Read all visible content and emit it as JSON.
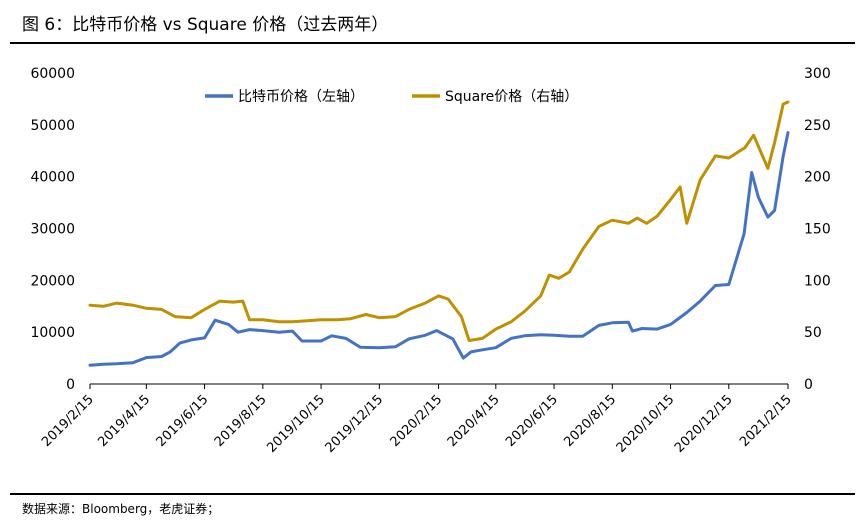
{
  "page": {
    "title": "图 6：比特币价格  vs Square 价格（过去两年）",
    "source": "数据来源：Bloomberg，老虎证券；"
  },
  "colors": {
    "bitcoin": "#4472C4",
    "square": "#BF9000",
    "axis": "#000000"
  },
  "chart_data": {
    "type": "line",
    "title": "",
    "xlabel": "",
    "ylabel": "",
    "x_categories": [
      "2019/2/15",
      "2019/4/15",
      "2019/6/15",
      "2019/8/15",
      "2019/10/15",
      "2019/12/15",
      "2020/2/15",
      "2020/4/15",
      "2020/6/15",
      "2020/8/15",
      "2020/10/15",
      "2020/12/15",
      "2021/2/15"
    ],
    "y_left": {
      "min": 0,
      "max": 60000,
      "ticks": [
        0,
        10000,
        20000,
        30000,
        40000,
        50000,
        60000
      ]
    },
    "y_right": {
      "min": 0,
      "max": 300,
      "ticks": [
        0,
        50,
        100,
        150,
        200,
        250,
        300
      ]
    },
    "legend": {
      "placement": "top-center",
      "entries": [
        "比特币价格（左轴）",
        "Square价格（右轴）"
      ]
    },
    "series": [
      {
        "name": "比特币价格（左轴）",
        "axis": "left",
        "color": "#4472C4",
        "x": [
          "2019/2/15",
          "2019/3/1",
          "2019/3/15",
          "2019/4/1",
          "2019/4/15",
          "2019/5/1",
          "2019/5/10",
          "2019/5/20",
          "2019/6/1",
          "2019/6/15",
          "2019/6/26",
          "2019/7/10",
          "2019/7/20",
          "2019/8/1",
          "2019/8/15",
          "2019/9/1",
          "2019/9/15",
          "2019/9/25",
          "2019/10/15",
          "2019/10/26",
          "2019/11/10",
          "2019/11/25",
          "2019/12/15",
          "2020/1/1",
          "2020/1/15",
          "2020/2/1",
          "2020/2/13",
          "2020/3/1",
          "2020/3/12",
          "2020/3/20",
          "2020/4/1",
          "2020/4/15",
          "2020/5/1",
          "2020/5/15",
          "2020/6/1",
          "2020/6/15",
          "2020/7/1",
          "2020/7/15",
          "2020/8/1",
          "2020/8/15",
          "2020/9/1",
          "2020/9/5",
          "2020/9/15",
          "2020/10/1",
          "2020/10/15",
          "2020/11/1",
          "2020/11/15",
          "2020/12/1",
          "2020/12/15",
          "2020/12/31",
          "2021/1/8",
          "2021/1/15",
          "2021/1/25",
          "2021/2/1",
          "2021/2/10",
          "2021/2/15"
        ],
        "values": [
          3600,
          3800,
          3900,
          4100,
          5100,
          5300,
          6200,
          7900,
          8500,
          8900,
          12300,
          11500,
          10000,
          10500,
          10300,
          10000,
          10200,
          8300,
          8300,
          9300,
          8800,
          7100,
          7000,
          7200,
          8700,
          9400,
          10300,
          8700,
          5000,
          6200,
          6600,
          7000,
          8800,
          9300,
          9500,
          9400,
          9200,
          9200,
          11300,
          11800,
          11900,
          10200,
          10700,
          10600,
          11500,
          13800,
          16000,
          19000,
          19200,
          29000,
          40800,
          36000,
          32200,
          33500,
          44000,
          48500
        ]
      },
      {
        "name": "Square价格（右轴）",
        "axis": "right",
        "color": "#BF9000",
        "x": [
          "2019/2/15",
          "2019/3/1",
          "2019/3/15",
          "2019/4/1",
          "2019/4/15",
          "2019/5/1",
          "2019/5/15",
          "2019/6/1",
          "2019/6/15",
          "2019/7/1",
          "2019/7/15",
          "2019/7/25",
          "2019/8/1",
          "2019/8/15",
          "2019/9/1",
          "2019/9/15",
          "2019/10/1",
          "2019/10/15",
          "2019/11/1",
          "2019/11/15",
          "2019/12/1",
          "2019/12/15",
          "2020/1/1",
          "2020/1/15",
          "2020/2/1",
          "2020/2/15",
          "2020/2/25",
          "2020/3/10",
          "2020/3/18",
          "2020/4/1",
          "2020/4/15",
          "2020/5/1",
          "2020/5/15",
          "2020/6/1",
          "2020/6/10",
          "2020/6/20",
          "2020/7/1",
          "2020/7/15",
          "2020/8/1",
          "2020/8/15",
          "2020/9/1",
          "2020/9/10",
          "2020/9/20",
          "2020/10/1",
          "2020/10/15",
          "2020/10/25",
          "2020/11/1",
          "2020/11/15",
          "2020/12/1",
          "2020/12/15",
          "2021/1/1",
          "2021/1/10",
          "2021/1/25",
          "2021/2/1",
          "2021/2/10",
          "2021/2/15"
        ],
        "values": [
          76,
          75,
          78,
          76,
          73,
          72,
          65,
          64,
          72,
          80,
          79,
          80,
          62,
          62,
          60,
          60,
          61,
          62,
          62,
          63,
          67,
          64,
          65,
          72,
          78,
          85,
          82,
          65,
          42,
          44,
          53,
          60,
          70,
          85,
          105,
          102,
          108,
          130,
          152,
          158,
          155,
          160,
          155,
          162,
          178,
          190,
          155,
          197,
          220,
          218,
          228,
          240,
          208,
          233,
          270,
          272
        ]
      }
    ]
  }
}
